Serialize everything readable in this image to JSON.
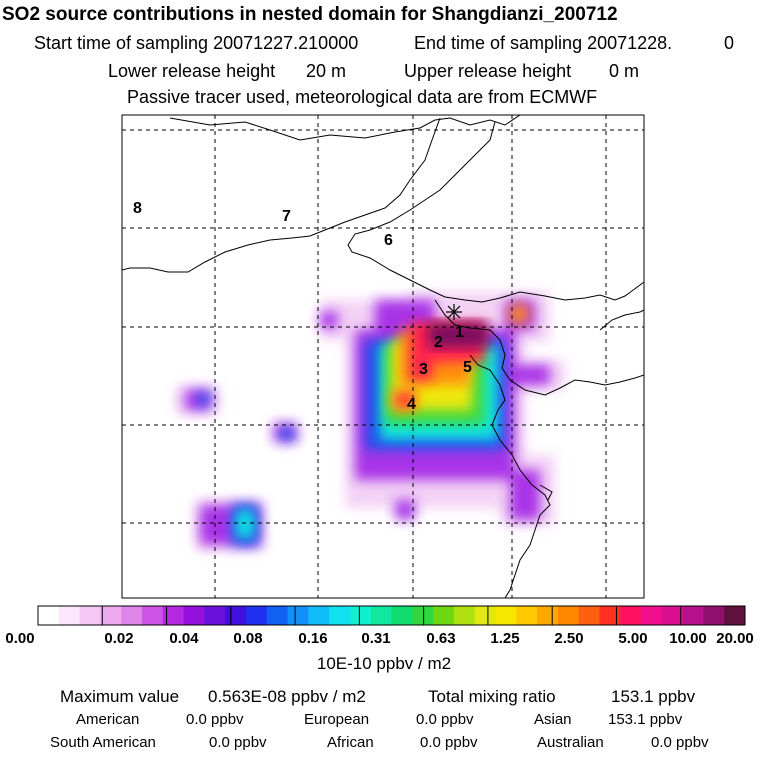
{
  "header": {
    "title": "SO2 source contributions in nested domain for Shangdianzi_200712",
    "start_label": "Start time of sampling 20071227.210000",
    "end_label": "End time of sampling 20071228.",
    "end_value": "0",
    "lower_label": "Lower release height",
    "lower_value": "20 m",
    "upper_label": "Upper release height",
    "upper_value": "0 m",
    "tracer_note": "Passive tracer used, meteorological data are from ECMWF"
  },
  "map": {
    "station_marker": "star-marker",
    "region_labels": [
      "1",
      "2",
      "3",
      "4",
      "5",
      "6",
      "7",
      "8"
    ]
  },
  "colorbar": {
    "tick_labels": [
      "0.00",
      "0.02",
      "0.04",
      "0.08",
      "0.16",
      "0.31",
      "0.63",
      "1.25",
      "2.50",
      "5.00",
      "10.00",
      "20.00"
    ],
    "unit": "10E-10 ppbv / m2",
    "colors": [
      "#ffffff",
      "#fbe6fb",
      "#f5c8f5",
      "#eeaaee",
      "#e085e8",
      "#cc55e6",
      "#b428e0",
      "#9410dc",
      "#6a10dc",
      "#4010e0",
      "#2030ee",
      "#1060f4",
      "#1090f8",
      "#10bcf8",
      "#10e0f0",
      "#10f0d0",
      "#10e8a0",
      "#10dc70",
      "#30d840",
      "#70d810",
      "#b0e010",
      "#e0ea10",
      "#f8e800",
      "#ffc800",
      "#ffa800",
      "#ff8800",
      "#ff6010",
      "#ff3020",
      "#ff1060",
      "#f0108c",
      "#d81090",
      "#b8108c",
      "#901070",
      "#60103c"
    ]
  },
  "stats": {
    "max_label": "Maximum value",
    "max_value": "0.563E-08 ppbv / m2",
    "total_label": "Total mixing ratio",
    "total_value": "153.1 ppbv",
    "american_label": "American",
    "american_value": "0.0 ppbv",
    "european_label": "European",
    "european_value": "0.0 ppbv",
    "asian_label": "Asian",
    "asian_value": "153.1 ppbv",
    "south_american_label": "South American",
    "south_american_value": "0.0 ppbv",
    "african_label": "African",
    "african_value": "0.0 ppbv",
    "australian_label": "Australian",
    "australian_value": "0.0 ppbv"
  }
}
